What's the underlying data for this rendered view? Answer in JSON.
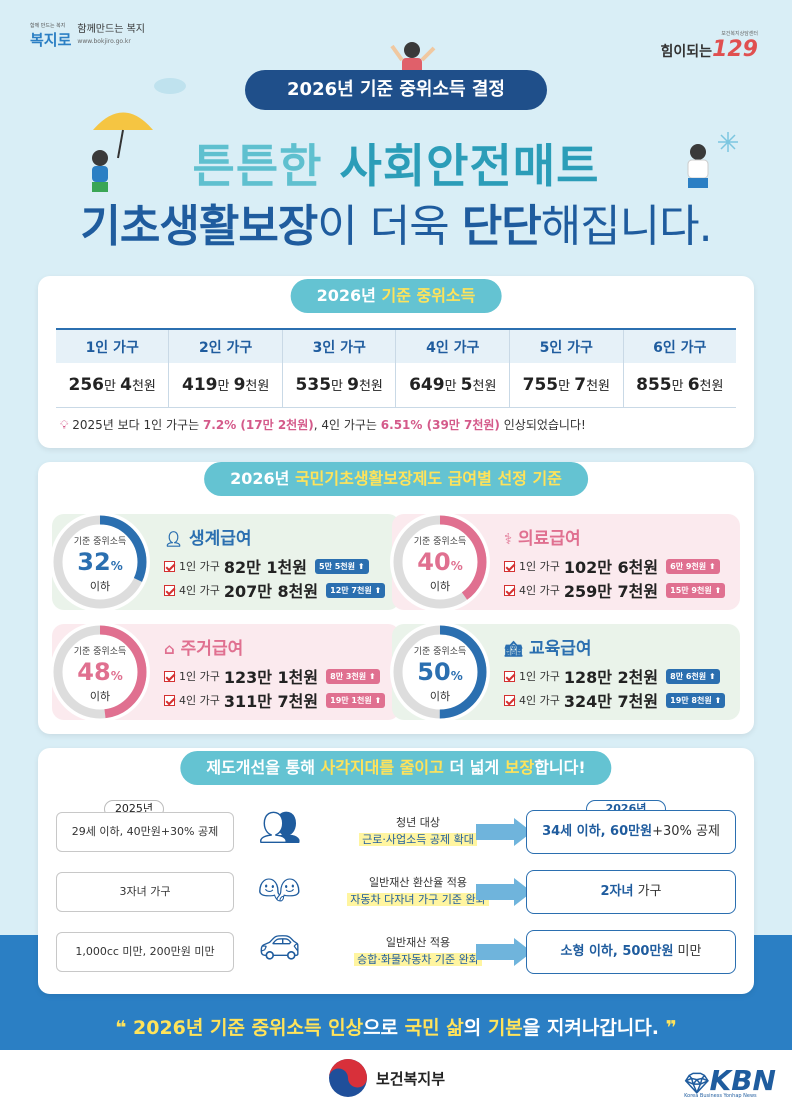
{
  "header": {
    "logo_left_small": "함께 만드는 복지",
    "logo_left_mark": "복지로",
    "logo_left_title": "함께만드는 복지",
    "logo_left_url": "www.bokjiro.go.kr",
    "logo_right_small": "보건복지상담센터",
    "logo_right_text": "힘이되는",
    "logo_right_num": "129",
    "pill": "2026년 기준 중위소득 결정",
    "head1_a": "튼튼한 ",
    "head1_b": "사회안전매트",
    "head2_a": "기초생활보장",
    "head2_b": "이 더욱 ",
    "head2_c": "단단",
    "head2_d": "해집니다."
  },
  "income": {
    "tab_a": "2026년 ",
    "tab_b": "기준 중위소득",
    "columns": [
      "1인 가구",
      "2인 가구",
      "3인 가구",
      "4인 가구",
      "5인 가구",
      "6인 가구"
    ],
    "values": [
      {
        "a": "256",
        "u1": "만 ",
        "b": "4",
        "u2": "천원"
      },
      {
        "a": "419",
        "u1": "만 ",
        "b": "9",
        "u2": "천원"
      },
      {
        "a": "535",
        "u1": "만 ",
        "b": "9",
        "u2": "천원"
      },
      {
        "a": "649",
        "u1": "만 ",
        "b": "5",
        "u2": "천원"
      },
      {
        "a": "755",
        "u1": "만 ",
        "b": "7",
        "u2": "천원"
      },
      {
        "a": "855",
        "u1": "만 ",
        "b": "6",
        "u2": "천원"
      }
    ],
    "note": {
      "t1": "2025년 보다 1인 가구는 ",
      "p1": "7.2% (17만 2천원)",
      "t2": ", 4인 가구는 ",
      "p2": "6.51% (39만 7천원)",
      "t3": " 인상되었습니다!"
    }
  },
  "benefits": {
    "tab_a": "2026년 ",
    "tab_b": "국민기초생활보장제도 급여별 선정 기준",
    "items": [
      {
        "name": "생계급여",
        "label_top": "기준 중위소득",
        "pct": "32",
        "pct_unit": "%",
        "label_bottom": "이하",
        "ratio": 0.32,
        "color": "#2b6fb0",
        "rows": [
          {
            "hh": "1인 가구",
            "amt": "82만 1천원",
            "badge": "5만 5천원 ⬆"
          },
          {
            "hh": "4인 가구",
            "amt": "207만 8천원",
            "badge": "12만 7천원 ⬆"
          }
        ]
      },
      {
        "name": "의료급여",
        "label_top": "기준 중위소득",
        "pct": "40",
        "pct_unit": "%",
        "label_bottom": "이하",
        "ratio": 0.4,
        "color": "#e07090",
        "rows": [
          {
            "hh": "1인 가구",
            "amt": "102만 6천원",
            "badge": "6만 9천원 ⬆"
          },
          {
            "hh": "4인 가구",
            "amt": "259만 7천원",
            "badge": "15만 9천원 ⬆"
          }
        ]
      },
      {
        "name": "주거급여",
        "label_top": "기준 중위소득",
        "pct": "48",
        "pct_unit": "%",
        "label_bottom": "이하",
        "ratio": 0.48,
        "color": "#e07090",
        "rows": [
          {
            "hh": "1인 가구",
            "amt": "123만 1천원",
            "badge": "8만 3천원 ⬆"
          },
          {
            "hh": "4인 가구",
            "amt": "311만 7천원",
            "badge": "19만 1천원 ⬆"
          }
        ]
      },
      {
        "name": "교육급여",
        "label_top": "기준 중위소득",
        "pct": "50",
        "pct_unit": "%",
        "label_bottom": "이하",
        "ratio": 0.5,
        "color": "#2b6fb0",
        "rows": [
          {
            "hh": "1인 가구",
            "amt": "128만 2천원",
            "badge": "8만 6천원 ⬆"
          },
          {
            "hh": "4인 가구",
            "amt": "324만 7천원",
            "badge": "19만 8천원 ⬆"
          }
        ]
      }
    ]
  },
  "reform": {
    "tab_a": "제도개선을 통해 ",
    "tab_b": "사각지대를 줄이고",
    "tab_c": " 더 넓게 ",
    "tab_d": "보장",
    "tab_e": "합니다!",
    "year_old": "2025년",
    "year_new": "2026년",
    "rows": [
      {
        "old": "29세 이하, 40만원+30% 공제",
        "mid1": "청년 대상",
        "mid2": "근로·사업소득 공제 확대",
        "new_b": "34세 이하, 60만원",
        "new_t": "+30% 공제"
      },
      {
        "old": "3자녀 가구",
        "mid1": "일반재산 환산율 적용",
        "mid2": "자동차 다자녀 가구 기준 완화",
        "new_b": "2자녀",
        "new_t": " 가구"
      },
      {
        "old": "1,000cc 미만, 200만원 미만",
        "mid1": "일반재산 적용",
        "mid2": "승합·화물자동차 기준 완화",
        "new_b": "소형 이하, 500만원",
        "new_t": " 미만"
      }
    ]
  },
  "footer": {
    "slogan_a": "2026년 기준 중위소득 인상",
    "slogan_b": "으로 ",
    "slogan_c": "국민 삶",
    "slogan_d": "의 ",
    "slogan_e": "기본",
    "slogan_f": "을 지켜나갑니다.",
    "ministry": "보건복지부",
    "kbn": "KBN",
    "kbn_sub": "Korea Business Yonhap News"
  }
}
